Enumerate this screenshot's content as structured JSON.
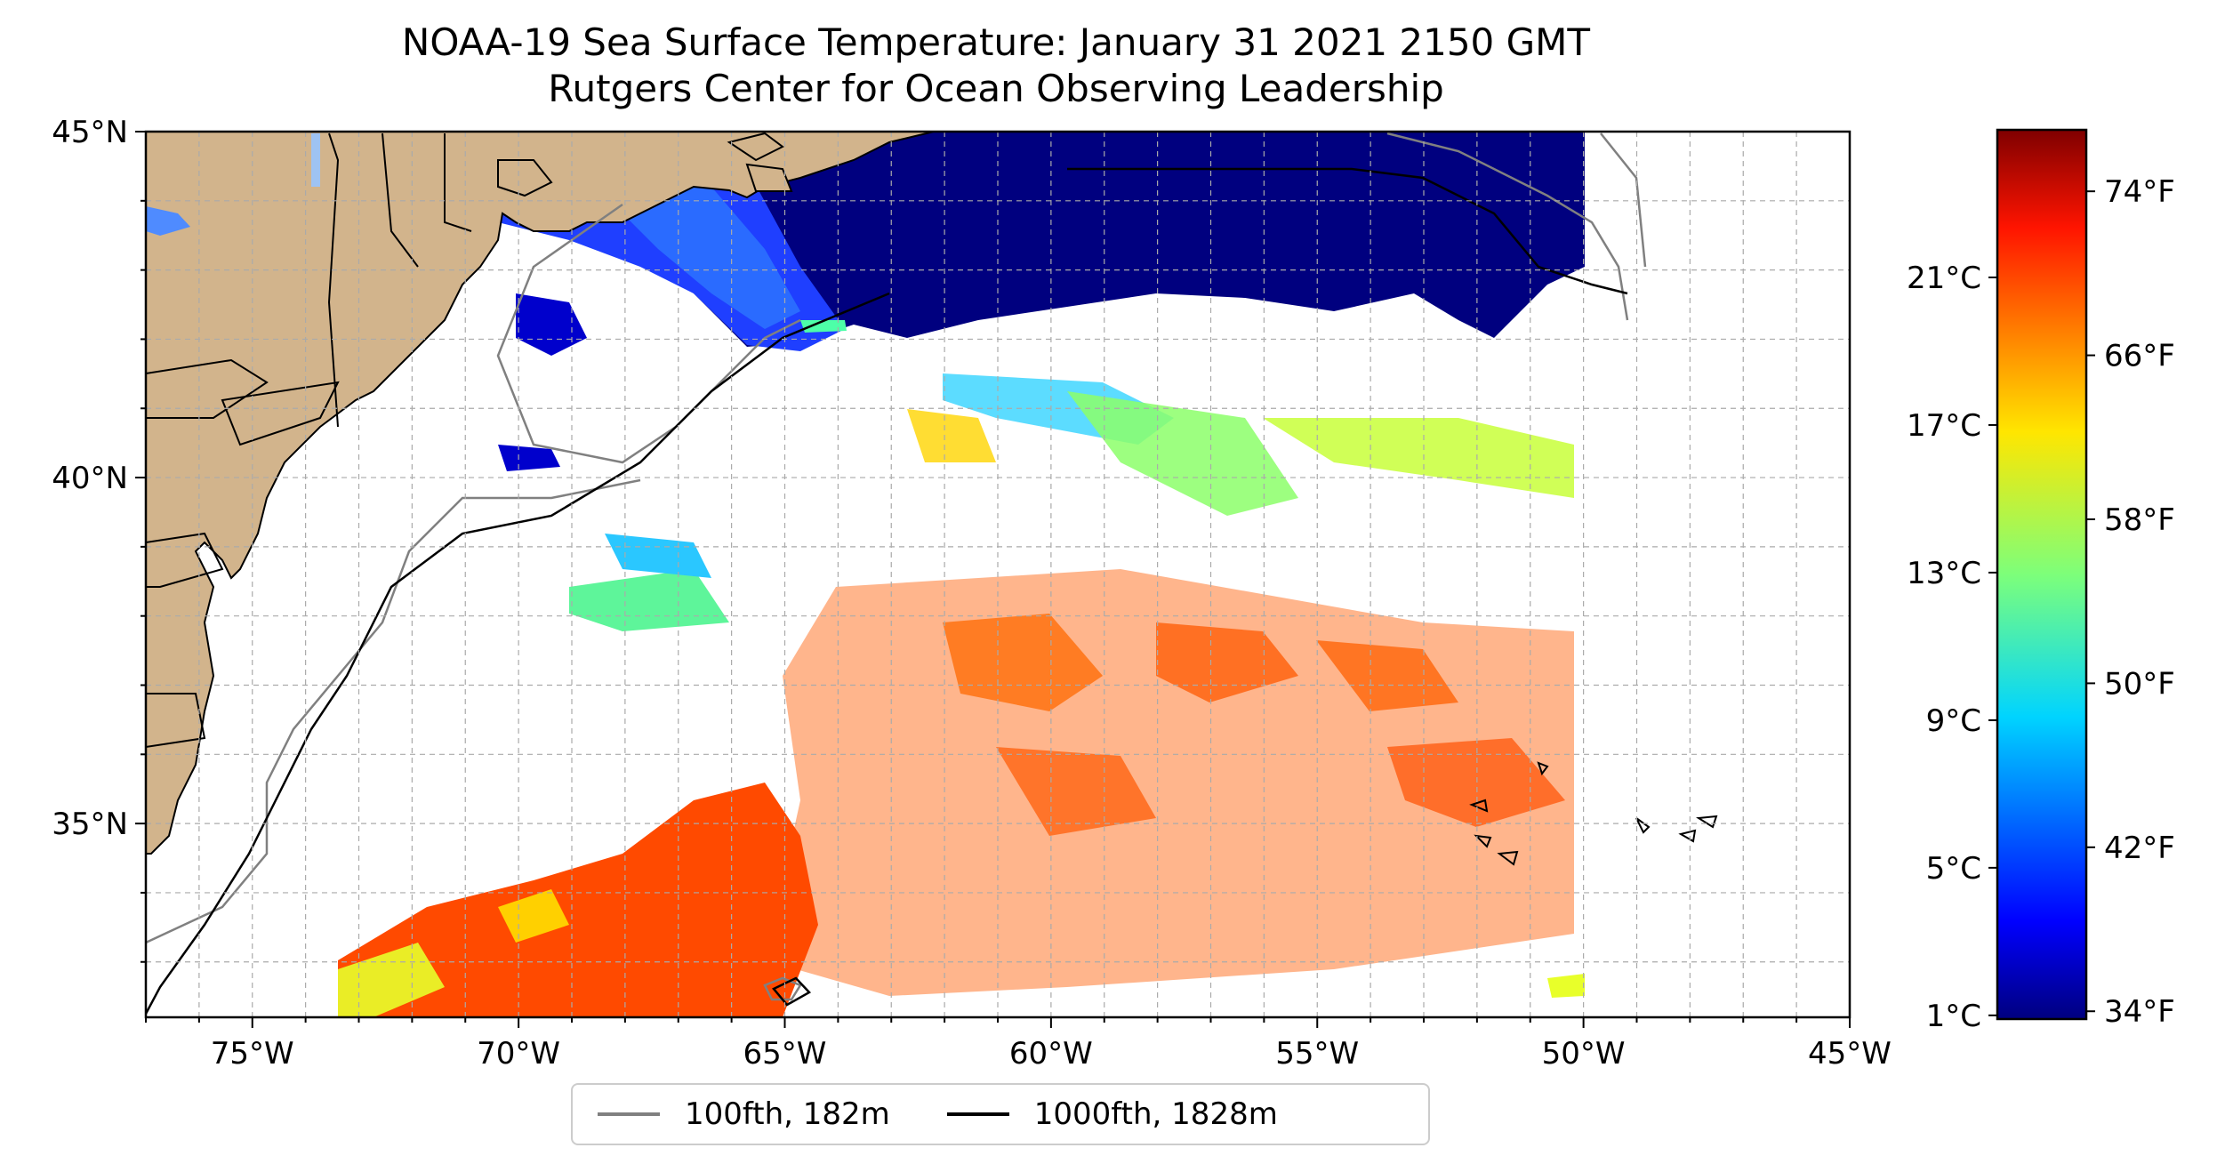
{
  "title": {
    "line1": "NOAA-19 Sea Surface Temperature: January 31 2021 2150 GMT",
    "line2": "Rutgers Center for Ocean Observing Leadership"
  },
  "map": {
    "lon_range": [
      -77,
      -45
    ],
    "lat_range": [
      32.2,
      45
    ],
    "lon_ticks": [
      "75°W",
      "70°W",
      "65°W",
      "60°W",
      "55°W",
      "50°W",
      "45°W"
    ],
    "lat_ticks": [
      "45°N",
      "40°N",
      "35°N"
    ],
    "land_color": "#d2b48c",
    "gridlines": "dashed gray, 1 degree"
  },
  "colorbar": {
    "colormap": "jet",
    "celsius_ticks": [
      "21°C",
      "17°C",
      "13°C",
      "9°C",
      "5°C",
      "1°C"
    ],
    "fahrenheit_ticks": [
      "74°F",
      "66°F",
      "58°F",
      "50°F",
      "42°F",
      "34°F"
    ]
  },
  "legend": {
    "items": [
      {
        "label": "100fth, 182m",
        "color": "#808080"
      },
      {
        "label": "1000fth, 1828m",
        "color": "#000000"
      }
    ]
  }
}
